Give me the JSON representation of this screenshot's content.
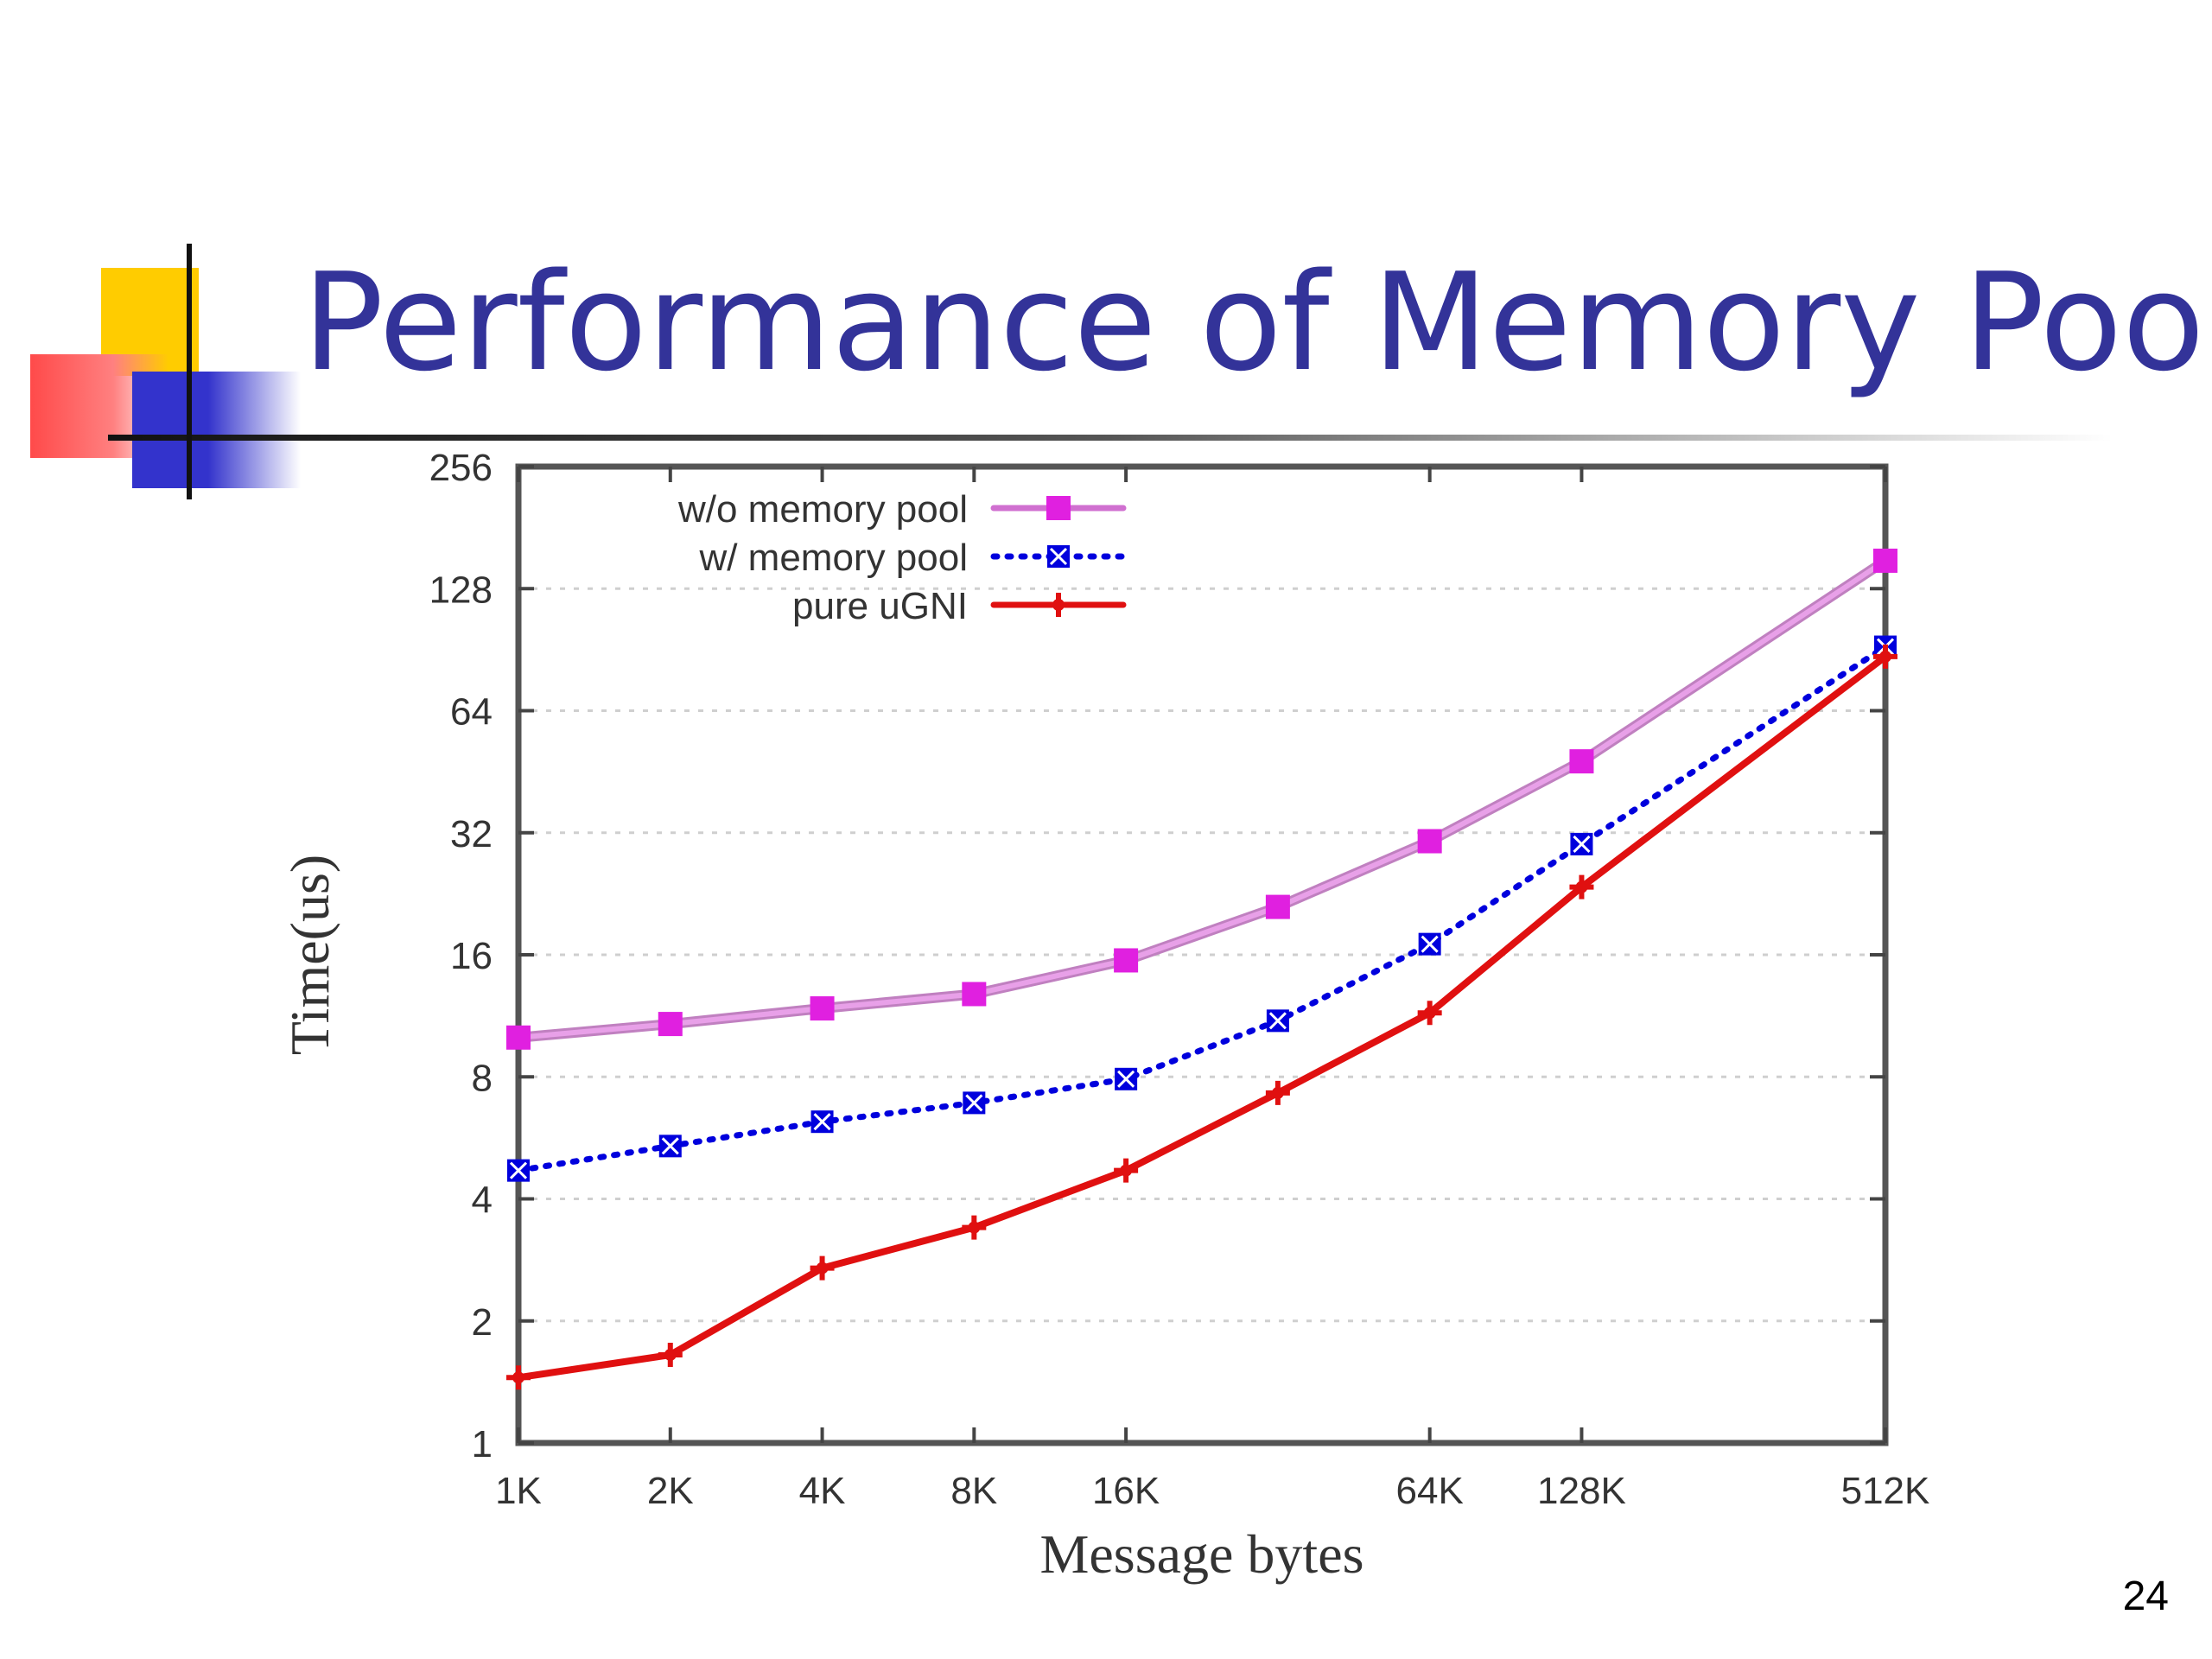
{
  "slide": {
    "title": "Performance of Memory Pool",
    "number": "24"
  },
  "chart_data": {
    "type": "line",
    "title": "",
    "xlabel": "Message bytes",
    "ylabel": "Time(us)",
    "x_scale": "log2",
    "y_scale": "log2",
    "x": [
      1024,
      2048,
      4096,
      8192,
      16384,
      32768,
      65536,
      131072,
      524288
    ],
    "xticks": [
      1024,
      2048,
      4096,
      8192,
      16384,
      65536,
      131072,
      524288
    ],
    "xtick_labels": [
      "1K",
      "2K",
      "4K",
      "8K",
      "16K",
      "64K",
      "128K",
      "512K"
    ],
    "yticks": [
      1,
      2,
      4,
      8,
      16,
      32,
      64,
      128,
      256
    ],
    "ytick_labels": [
      "1",
      "2",
      "4",
      "8",
      "16",
      "32",
      "64",
      "128",
      "256"
    ],
    "xlim": [
      1024,
      524288
    ],
    "ylim": [
      1,
      256
    ],
    "grid": "horizontal dashed",
    "legend_position": "top-left",
    "series": [
      {
        "name": "w/o memory pool",
        "color": "#e020e0",
        "line": "solid",
        "marker": "square",
        "values": [
          10,
          10.8,
          11.8,
          12.8,
          15.5,
          21,
          30.5,
          48,
          150
        ]
      },
      {
        "name": "w/ memory pool",
        "color": "#0000dd",
        "line": "dotted",
        "marker": "x",
        "values": [
          4.7,
          5.4,
          6.2,
          6.9,
          7.9,
          11,
          17,
          30,
          92
        ]
      },
      {
        "name": "pure uGNI",
        "color": "#e01010",
        "line": "solid",
        "marker": "plus",
        "values": [
          1.45,
          1.65,
          2.7,
          3.4,
          4.7,
          7.3,
          11.5,
          23.5,
          87
        ]
      }
    ]
  }
}
